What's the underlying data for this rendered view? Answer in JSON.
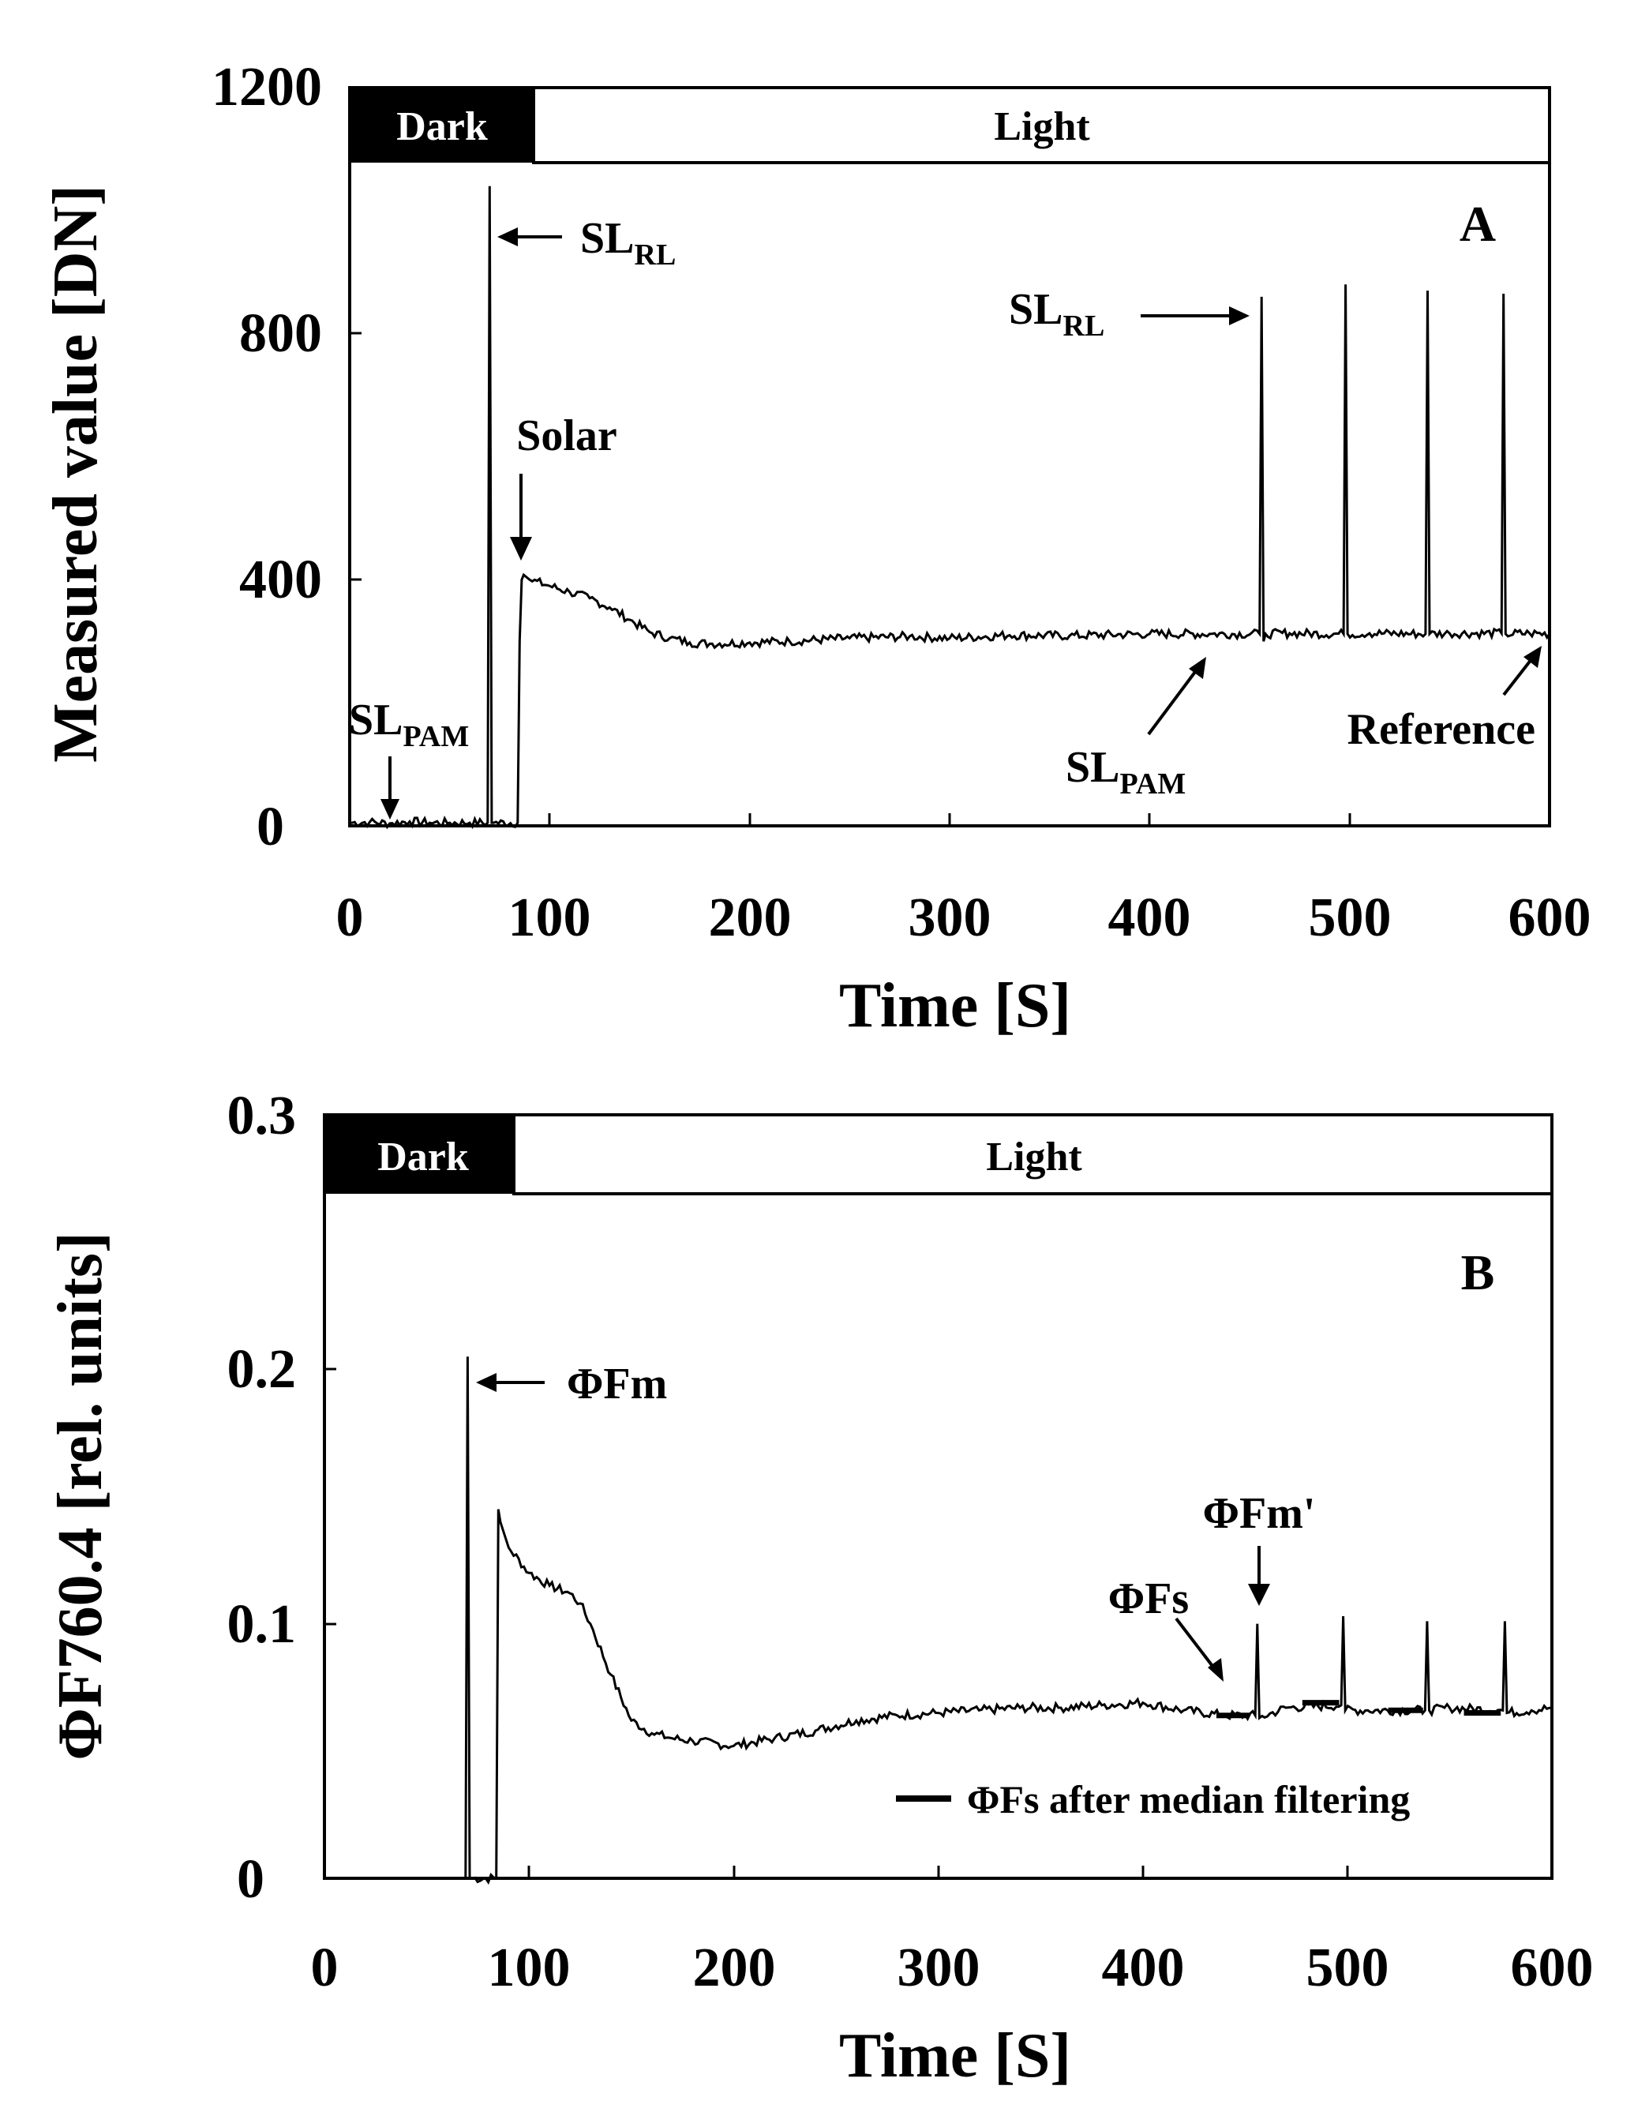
{
  "chart_data": [
    {
      "panel": "A",
      "type": "line",
      "xlabel": "Time [S]",
      "ylabel": "Measured value [DN]",
      "xlim": [
        0,
        600
      ],
      "ylim": [
        0,
        1200
      ],
      "xticks": [
        0,
        100,
        200,
        300,
        400,
        500,
        600
      ],
      "yticks": [
        0,
        400,
        800,
        1200
      ],
      "bands": [
        {
          "label": "Dark",
          "from": 0,
          "to": 93,
          "color": "#000000"
        },
        {
          "label": "Light",
          "from": 93,
          "to": 600,
          "color": "#ffffff"
        }
      ],
      "series": [
        {
          "name": "Measured value",
          "x": [
            0,
            10,
            20,
            30,
            40,
            50,
            60,
            69,
            70,
            71,
            72,
            84,
            85,
            86,
            87,
            90,
            100,
            110,
            120,
            130,
            140,
            150,
            160,
            170,
            180,
            200,
            220,
            250,
            280,
            300,
            330,
            360,
            400,
            430,
            455,
            456,
            457,
            458,
            470,
            497,
            498,
            499,
            510,
            538,
            539,
            540,
            550,
            576,
            577,
            578,
            590,
            600
          ],
          "y": [
            5,
            6,
            4,
            7,
            5,
            5,
            5,
            5,
            1040,
            5,
            5,
            5,
            300,
            400,
            408,
            400,
            390,
            380,
            370,
            355,
            335,
            315,
            305,
            298,
            296,
            298,
            300,
            305,
            308,
            305,
            310,
            309,
            312,
            312,
            312,
            860,
            300,
            312,
            313,
            312,
            880,
            312,
            313,
            312,
            870,
            312,
            313,
            313,
            865,
            312,
            313,
            312
          ]
        }
      ],
      "panel_label": "A",
      "annotations": [
        {
          "main": "SL",
          "sub": "RL",
          "x": 71,
          "y": 955
        },
        {
          "main": "SL",
          "sub": "PAM",
          "x": 23,
          "y": 10
        },
        {
          "main": "Solar",
          "x": 87,
          "y": 412
        },
        {
          "main": "SL",
          "sub": "RL",
          "x": 456,
          "y": 820
        },
        {
          "main": "SL",
          "sub": "PAM",
          "x": 430,
          "y": 290
        },
        {
          "main": "Reference",
          "x": 597,
          "y": 310
        }
      ]
    },
    {
      "panel": "B",
      "type": "line",
      "xlabel": "Time [S]",
      "ylabel": "ΦF760.4 [rel. units]",
      "xlim": [
        0,
        600
      ],
      "ylim": [
        0,
        0.3
      ],
      "xticks": [
        0,
        100,
        200,
        300,
        400,
        500,
        600
      ],
      "yticks": [
        0,
        0.1,
        0.2,
        0.3
      ],
      "bands": [
        {
          "label": "Dark",
          "from": 0,
          "to": 93,
          "color": "#000000"
        },
        {
          "label": "Light",
          "from": 93,
          "to": 600,
          "color": "#ffffff"
        }
      ],
      "series": [
        {
          "name": "ΦF760.4",
          "x": [
            69,
            70,
            71,
            84,
            85,
            86,
            90,
            100,
            110,
            120,
            125,
            130,
            140,
            150,
            160,
            170,
            180,
            200,
            220,
            240,
            260,
            280,
            300,
            320,
            340,
            360,
            380,
            400,
            420,
            440,
            455,
            456,
            457,
            470,
            497,
            498,
            499,
            510,
            538,
            539,
            540,
            550,
            576,
            577,
            578,
            590,
            600
          ],
          "y": [
            0,
            0.205,
            0,
            0,
            0.145,
            0.14,
            0.13,
            0.12,
            0.115,
            0.112,
            0.108,
            0.1,
            0.08,
            0.062,
            0.057,
            0.055,
            0.054,
            0.052,
            0.055,
            0.058,
            0.062,
            0.064,
            0.065,
            0.066,
            0.067,
            0.067,
            0.068,
            0.069,
            0.066,
            0.064,
            0.064,
            0.1,
            0.063,
            0.067,
            0.068,
            0.103,
            0.066,
            0.066,
            0.066,
            0.101,
            0.066,
            0.067,
            0.066,
            0.101,
            0.065,
            0.066,
            0.067
          ]
        }
      ],
      "median_filtered": [
        {
          "from": 436,
          "to": 452,
          "value": 0.064
        },
        {
          "from": 478,
          "to": 496,
          "value": 0.069
        },
        {
          "from": 520,
          "to": 537,
          "value": 0.066
        },
        {
          "from": 557,
          "to": 575,
          "value": 0.065
        }
      ],
      "legend": {
        "label": "ΦFs after median filtering",
        "placement": "bottom-right"
      },
      "panel_label": "B",
      "annotations": [
        {
          "main": "ΦFm",
          "x": 71,
          "y": 0.19
        },
        {
          "main": "ΦFm'",
          "x": 456,
          "y": 0.103
        },
        {
          "main": "ΦFs",
          "x": 445,
          "y": 0.068
        }
      ]
    }
  ]
}
